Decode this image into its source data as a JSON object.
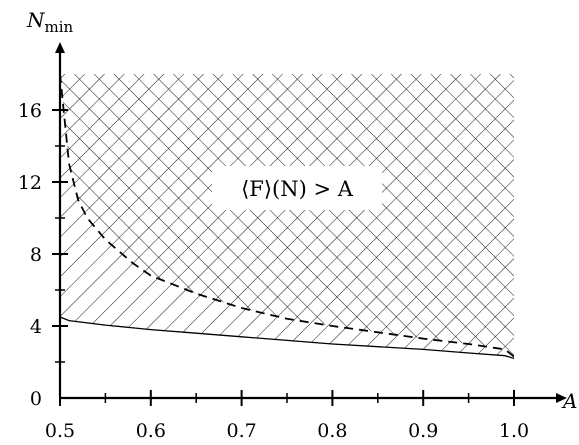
{
  "chart_data": {
    "type": "area",
    "xlabel": "A",
    "ylabel": "N",
    "ylabel_subscript": "min",
    "xlim": [
      0.5,
      1.0
    ],
    "ylim": [
      0,
      18
    ],
    "x_ticks": [
      0.5,
      0.6,
      0.7,
      0.8,
      0.9,
      1.0
    ],
    "x_tick_labels": [
      "0.5",
      "0.6",
      "0.7",
      "0.8",
      "0.9",
      "1.0"
    ],
    "x_minor_ticks": [
      0.55,
      0.65,
      0.75,
      0.85,
      0.95
    ],
    "y_ticks": [
      0,
      4,
      8,
      12,
      16
    ],
    "y_tick_labels": [
      "0",
      "4",
      "8",
      "12",
      "16"
    ],
    "y_minor_ticks": [
      2,
      6,
      10,
      14
    ],
    "grid": false,
    "annotation": "⟨F⟩(N) > A",
    "series": [
      {
        "style": "solid",
        "x": [
          0.5,
          0.51,
          0.55,
          0.6,
          0.65,
          0.7,
          0.75,
          0.8,
          0.85,
          0.9,
          0.95,
          0.99,
          1.0
        ],
        "y": [
          4.5,
          4.3,
          4.05,
          3.8,
          3.6,
          3.4,
          3.2,
          3.0,
          2.85,
          2.7,
          2.5,
          2.35,
          2.2
        ]
      },
      {
        "style": "dashed",
        "x": [
          0.5,
          0.505,
          0.51,
          0.52,
          0.53,
          0.55,
          0.58,
          0.6,
          0.65,
          0.7,
          0.75,
          0.8,
          0.85,
          0.9,
          0.95,
          0.99,
          1.0
        ],
        "y": [
          18,
          15.5,
          13,
          11,
          10,
          8.8,
          7.5,
          6.8,
          5.8,
          5.0,
          4.4,
          4.0,
          3.65,
          3.3,
          3.0,
          2.7,
          2.3
        ]
      }
    ],
    "regions": [
      {
        "hatch": "diagonal",
        "between": [
          "solid",
          "top"
        ]
      },
      {
        "hatch": "crosshatch",
        "between": [
          "dashed",
          "top"
        ]
      }
    ]
  }
}
